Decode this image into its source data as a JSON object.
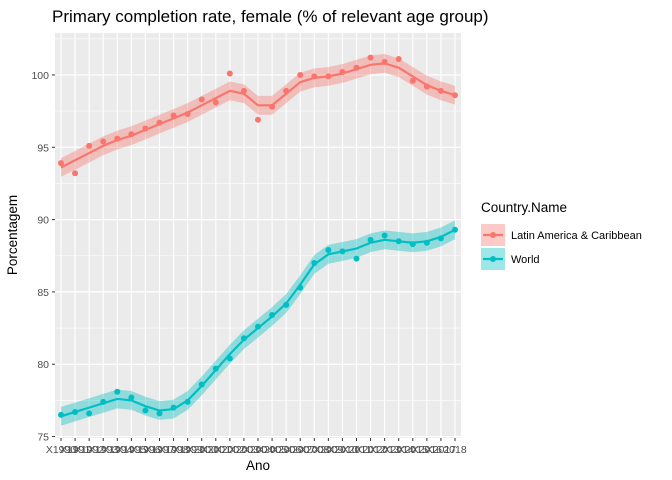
{
  "chart_data": {
    "type": "line",
    "title": "Primary completion rate, female (% of relevant age group)",
    "xlabel": "Ano",
    "ylabel": "Porcentagem",
    "ylim": [
      74.9,
      102.9
    ],
    "yticks": [
      75,
      80,
      85,
      90,
      95,
      100
    ],
    "grid": true,
    "legend_title": "Country.Name",
    "legend_position": "right",
    "x": [
      "X1990",
      "X1991",
      "X1992",
      "X1993",
      "X1994",
      "X1995",
      "X1996",
      "X1997",
      "X1998",
      "X1999",
      "X2000",
      "X2001",
      "X2002",
      "X2003",
      "X2004",
      "X2005",
      "X2006",
      "X2007",
      "X2008",
      "X2009",
      "X2010",
      "X2011",
      "X2012",
      "X2013",
      "X2014",
      "X2015",
      "X2016",
      "X2017",
      "X2018"
    ],
    "x_tick_labels_visible": [
      "X1990",
      "X1991",
      "X1992",
      "X1993",
      "X1994",
      "X1995",
      "X1996",
      "X1997",
      "X1998",
      "X1999",
      "X2000",
      "X2001",
      "X2002",
      "X2003",
      "X2004",
      "X2005",
      "X2006",
      "X2007",
      "X2008",
      "X2009",
      "X2010",
      "X2011",
      "X2012",
      "X2013",
      "X2014",
      "X2015",
      "X2016",
      "X2017",
      "2018"
    ],
    "series": [
      {
        "name": "Latin America & Caribbean",
        "color": "#f8766d",
        "values": [
          93.9,
          93.2,
          95.1,
          95.4,
          95.6,
          95.9,
          96.3,
          96.7,
          97.2,
          97.3,
          98.3,
          98.1,
          100.1,
          98.9,
          96.9,
          97.8,
          98.9,
          100.0,
          99.9,
          99.9,
          100.2,
          100.5,
          101.2,
          100.9,
          101.1,
          99.6,
          99.2,
          98.9,
          98.6
        ],
        "smooth": [
          93.6,
          94.1,
          94.6,
          95.1,
          95.5,
          95.8,
          96.2,
          96.6,
          97.0,
          97.4,
          97.9,
          98.4,
          98.9,
          98.7,
          97.9,
          97.9,
          98.7,
          99.5,
          99.8,
          99.9,
          100.1,
          100.4,
          100.7,
          100.8,
          100.5,
          99.9,
          99.3,
          98.9,
          98.6
        ]
      },
      {
        "name": "World",
        "color": "#00bfc4",
        "values": [
          76.5,
          76.7,
          76.6,
          77.4,
          78.1,
          77.7,
          76.8,
          76.6,
          77.0,
          77.4,
          78.6,
          79.7,
          80.4,
          81.8,
          82.6,
          83.4,
          84.1,
          85.3,
          87.0,
          87.9,
          87.8,
          87.3,
          88.6,
          88.9,
          88.5,
          88.3,
          88.4,
          88.7,
          89.3
        ],
        "smooth": [
          76.4,
          76.7,
          77.0,
          77.3,
          77.6,
          77.5,
          77.1,
          76.8,
          76.9,
          77.5,
          78.5,
          79.6,
          80.7,
          81.7,
          82.5,
          83.3,
          84.2,
          85.5,
          86.9,
          87.6,
          87.8,
          88.0,
          88.4,
          88.6,
          88.5,
          88.4,
          88.5,
          88.8,
          89.3
        ]
      }
    ]
  }
}
